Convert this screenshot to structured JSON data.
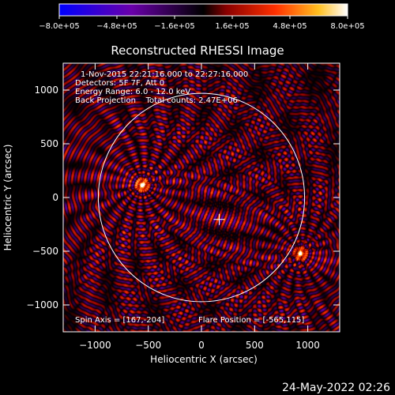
{
  "chart_data": {
    "type": "heatmap",
    "title": "Reconstructed RHESSI Image",
    "xlabel": "Heliocentric X (arcsec)",
    "ylabel": "Heliocentric Y (arcsec)",
    "xlim": [
      -1300,
      1300
    ],
    "ylim": [
      -1250,
      1250
    ],
    "xticks": [
      -1000,
      -500,
      0,
      500,
      1000
    ],
    "yticks": [
      -1000,
      -500,
      0,
      500,
      1000
    ],
    "xtick_labels": [
      "−1000",
      "−500",
      "0",
      "500",
      "1000"
    ],
    "ytick_labels": [
      "−1000",
      "−500",
      "0",
      "500",
      "1000"
    ],
    "colorbar": {
      "range": [
        -800000,
        800000
      ],
      "tick_values": [
        -800000,
        -480000,
        -160000,
        160000,
        480000,
        800000
      ],
      "tick_labels": [
        "−8.0e+05",
        "−4.8e+05",
        "−1.6e+05",
        "1.6e+05",
        "4.8e+05",
        "8.0e+05"
      ],
      "colors": [
        "#0000ff",
        "#6a00aa",
        "#000000",
        "#8a0000",
        "#ff3000",
        "#ffc020",
        "#ffffff"
      ]
    },
    "annotations": [
      "1-Nov-2015 22:21:16.000 to 22:27:16.000",
      "Detectors: 5F 7F, Att 0",
      "Energy Range: 6.0 - 12.0 keV",
      "Back Projection    Total counts: 2.47E+06"
    ],
    "spin_axis_label": "Spin Axis = [167,-204]",
    "flare_position_label": "Flare Position = [-565,115]",
    "spin_axis": [
      167,
      -204
    ],
    "solar_disk": {
      "center": [
        0,
        0
      ],
      "radius": 970
    },
    "sources": [
      {
        "x": -560,
        "y": 120,
        "peak": 800000
      },
      {
        "x": 930,
        "y": -520,
        "peak": 650000
      }
    ],
    "grid": false
  },
  "footer": {
    "timestamp": "24-May-2022 02:26"
  }
}
